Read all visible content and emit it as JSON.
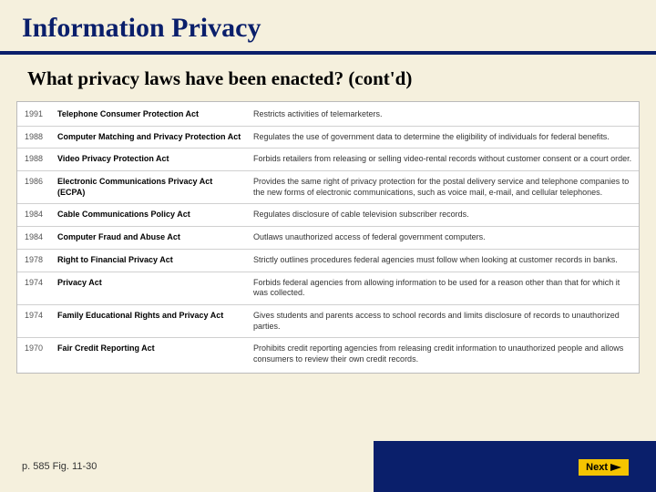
{
  "slide": {
    "title": "Information Privacy",
    "subtitle": "What privacy laws have been enacted? (cont'd)",
    "page_ref": "p. 585 Fig. 11-30",
    "next_label": "Next"
  },
  "colors": {
    "background": "#f5f0dd",
    "accent": "#0a1f6b",
    "button": "#f5c400",
    "row_border": "#d0d0d0"
  },
  "table": {
    "columns": [
      "year",
      "law",
      "description"
    ],
    "rows": [
      {
        "year": "1991",
        "law": "Telephone Consumer Protection Act",
        "description": "Restricts activities of telemarketers."
      },
      {
        "year": "1988",
        "law": "Computer Matching and Privacy Protection Act",
        "description": "Regulates the use of government data to determine the eligibility of individuals for federal benefits."
      },
      {
        "year": "1988",
        "law": "Video Privacy Protection Act",
        "description": "Forbids retailers from releasing or selling video-rental records without customer consent or a court order."
      },
      {
        "year": "1986",
        "law": "Electronic Communications Privacy Act (ECPA)",
        "description": "Provides the same right of privacy protection for the postal delivery service and telephone companies to the new forms of electronic communications, such as voice mail, e-mail, and cellular telephones."
      },
      {
        "year": "1984",
        "law": "Cable Communications Policy Act",
        "description": "Regulates disclosure of cable television subscriber records."
      },
      {
        "year": "1984",
        "law": "Computer Fraud and Abuse Act",
        "description": "Outlaws unauthorized access of federal government computers."
      },
      {
        "year": "1978",
        "law": "Right to Financial Privacy Act",
        "description": "Strictly outlines procedures federal agencies must follow when looking at customer records in banks."
      },
      {
        "year": "1974",
        "law": "Privacy Act",
        "description": "Forbids federal agencies from allowing information to be used for a reason other than that for which it was collected."
      },
      {
        "year": "1974",
        "law": "Family Educational Rights and Privacy Act",
        "description": "Gives students and parents access to school records and limits disclosure of records to unauthorized parties."
      },
      {
        "year": "1970",
        "law": "Fair Credit Reporting Act",
        "description": "Prohibits credit reporting agencies from releasing credit information to unauthorized people and allows consumers to review their own credit records."
      }
    ]
  }
}
